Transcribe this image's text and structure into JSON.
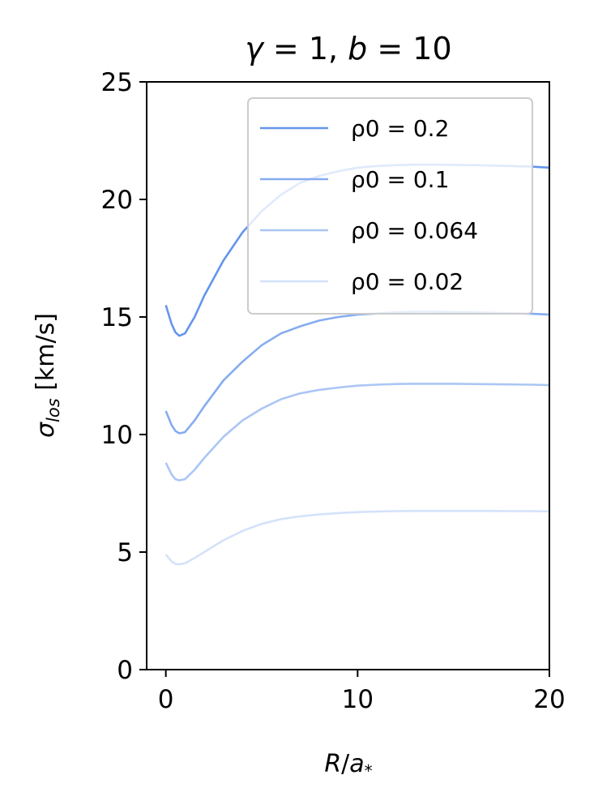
{
  "chart_data": {
    "type": "line",
    "title": "γ = 1, b = 10",
    "xlabel": "R/a*",
    "ylabel": "σlos [km/s]",
    "xlim": [
      -1,
      20
    ],
    "ylim": [
      0,
      25
    ],
    "xticks": [
      0,
      10,
      20
    ],
    "yticks": [
      0,
      5,
      10,
      15,
      20,
      25
    ],
    "grid": false,
    "legend_position": "upper-right",
    "x": [
      0,
      0.3,
      0.5,
      0.7,
      1,
      1.5,
      2,
      3,
      4,
      5,
      6,
      7,
      8,
      9,
      10,
      11,
      12,
      13,
      14,
      15,
      16,
      17,
      18,
      19,
      20
    ],
    "series": [
      {
        "name": "ρ0 = 0.2",
        "color": "#6495ed",
        "values": [
          15.5,
          14.7,
          14.35,
          14.2,
          14.3,
          15.0,
          15.9,
          17.4,
          18.6,
          19.5,
          20.2,
          20.7,
          21.0,
          21.2,
          21.35,
          21.42,
          21.46,
          21.48,
          21.48,
          21.47,
          21.46,
          21.44,
          21.42,
          21.4,
          21.35
        ]
      },
      {
        "name": "ρ0 = 0.1",
        "color": "#85acf0",
        "values": [
          11.0,
          10.4,
          10.15,
          10.05,
          10.1,
          10.6,
          11.2,
          12.3,
          13.1,
          13.8,
          14.3,
          14.6,
          14.85,
          15.0,
          15.1,
          15.15,
          15.2,
          15.22,
          15.22,
          15.21,
          15.2,
          15.18,
          15.16,
          15.14,
          15.1
        ]
      },
      {
        "name": "ρ0 = 0.064",
        "color": "#abc6f5",
        "values": [
          8.8,
          8.3,
          8.1,
          8.05,
          8.1,
          8.5,
          9.0,
          9.9,
          10.6,
          11.1,
          11.5,
          11.75,
          11.9,
          12.0,
          12.08,
          12.12,
          12.15,
          12.16,
          12.16,
          12.16,
          12.15,
          12.14,
          12.13,
          12.12,
          12.1
        ]
      },
      {
        "name": "ρ0 = 0.02",
        "color": "#d4e2fa",
        "values": [
          4.9,
          4.6,
          4.5,
          4.48,
          4.52,
          4.75,
          5.0,
          5.5,
          5.9,
          6.2,
          6.4,
          6.52,
          6.6,
          6.66,
          6.7,
          6.72,
          6.74,
          6.75,
          6.75,
          6.75,
          6.75,
          6.75,
          6.74,
          6.74,
          6.73
        ]
      }
    ]
  }
}
